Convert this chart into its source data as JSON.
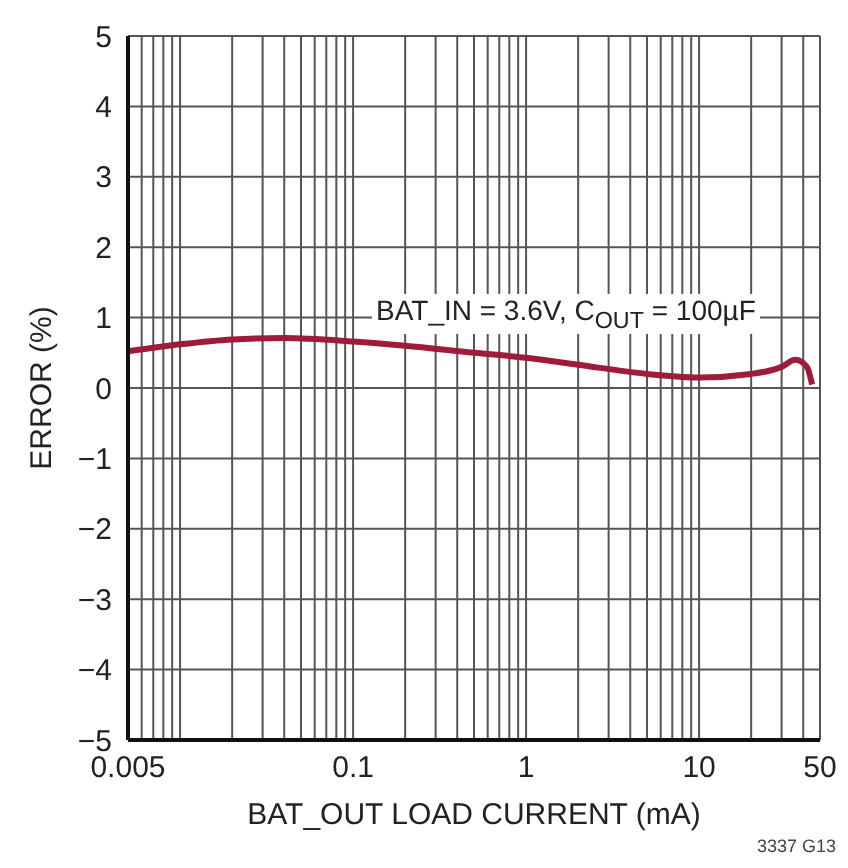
{
  "chart_data": {
    "type": "line",
    "xlabel": "BAT_OUT LOAD CURRENT (mA)",
    "ylabel": "ERROR (%)",
    "annotations": [
      "BAT_IN = 3.6V,  C$_{OUT}$ = 100µF",
      "3337 G13"
    ],
    "x": [
      0.005,
      0.01,
      0.02,
      0.04,
      0.1,
      0.2,
      0.5,
      1,
      2,
      5,
      10,
      20,
      30,
      36,
      42,
      45
    ],
    "series": [
      {
        "color": "#9e1b3c",
        "values": [
          0.52,
          0.62,
          0.69,
          0.71,
          0.66,
          0.6,
          0.5,
          0.43,
          0.33,
          0.2,
          0.15,
          0.2,
          0.3,
          0.4,
          0.3,
          0.05
        ]
      }
    ],
    "log": "x",
    "xlim": [
      0.005,
      50
    ],
    "xticks": [
      0.005,
      {
        "value": 0.006,
        "label": null
      },
      {
        "value": 0.007,
        "label": null
      },
      {
        "value": 0.008,
        "label": null
      },
      {
        "value": 0.009,
        "label": null
      },
      {
        "value": 0.01,
        "label": null
      },
      {
        "value": 0.02,
        "label": null
      },
      {
        "value": 0.03,
        "label": null
      },
      {
        "value": 0.04,
        "label": null
      },
      {
        "value": 0.05,
        "label": null
      },
      {
        "value": 0.06,
        "label": null
      },
      {
        "value": 0.07,
        "label": null
      },
      {
        "value": 0.08,
        "label": null
      },
      {
        "value": 0.09,
        "label": null
      },
      0.1,
      {
        "value": 0.2,
        "label": null
      },
      {
        "value": 0.3,
        "label": null
      },
      {
        "value": 0.4,
        "label": null
      },
      {
        "value": 0.5,
        "label": null
      },
      {
        "value": 0.6,
        "label": null
      },
      {
        "value": 0.7,
        "label": null
      },
      {
        "value": 0.8,
        "label": null
      },
      {
        "value": 0.9,
        "label": null
      },
      1,
      {
        "value": 2,
        "label": null
      },
      {
        "value": 3,
        "label": null
      },
      {
        "value": 4,
        "label": null
      },
      {
        "value": 5,
        "label": null
      },
      {
        "value": 6,
        "label": null
      },
      {
        "value": 7,
        "label": null
      },
      {
        "value": 8,
        "label": null
      },
      {
        "value": 9,
        "label": null
      },
      10,
      {
        "value": 20,
        "label": null
      },
      {
        "value": 30,
        "label": null
      },
      {
        "value": 40,
        "label": null
      },
      50
    ],
    "ylim": [
      -5,
      5
    ],
    "yticks": [
      {
        "value": -5,
        "label": "−5"
      },
      {
        "value": -4,
        "label": "−4"
      },
      {
        "value": -3,
        "label": "−3"
      },
      {
        "value": -2,
        "label": "−2"
      },
      {
        "value": -1,
        "label": "−1"
      },
      0,
      1,
      2,
      3,
      4,
      5
    ],
    "grid": true,
    "legend": false,
    "marker": "none",
    "line_style": "solid"
  }
}
